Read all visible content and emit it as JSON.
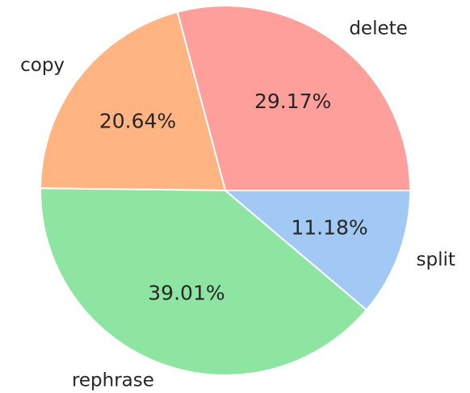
{
  "chart_data": {
    "type": "pie",
    "categories": [
      "delete",
      "copy",
      "rephrase",
      "split"
    ],
    "values": [
      29.17,
      20.64,
      39.01,
      11.18
    ],
    "value_labels": [
      "29.17%",
      "20.64%",
      "39.01%",
      "11.18%"
    ],
    "colors": [
      "#ff9f9b",
      "#ffb482",
      "#8de5a1",
      "#a1c9f4"
    ]
  }
}
